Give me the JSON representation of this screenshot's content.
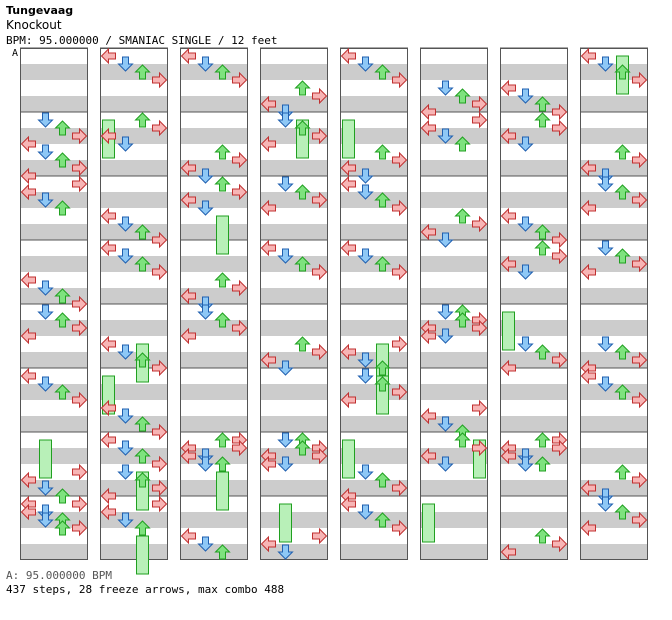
{
  "header": {
    "artist": "Tungevaag",
    "title": "Knockout",
    "info": "BPM: 95.000000 / SMANIAC SINGLE / 12 feet",
    "bpm_marker": "A"
  },
  "footer": {
    "bpm_text": "A: 95.000000 BPM",
    "stats": "437 steps, 28 freeze arrows, max combo 488"
  },
  "colors": {
    "stripe": "#cccccc",
    "left_note": "#f7b5b5",
    "down_note": "#8ec8f6",
    "up_note": "#7ee27e",
    "right_note": "#f7b5b5",
    "mine_note": "#e8a8f0",
    "freeze_fill": "#b8f0b8"
  },
  "chart": {
    "columns": 8,
    "measures_per_column": 8,
    "lanes": [
      "left",
      "down",
      "up",
      "right"
    ],
    "notes": [
      [
        [
          1,
          0,
          "down"
        ],
        [
          1,
          1,
          "left"
        ],
        [
          2,
          0,
          "down"
        ],
        [
          3,
          2,
          "up"
        ],
        [
          3,
          1,
          "left"
        ],
        [
          5,
          0,
          "right"
        ],
        [
          6,
          2,
          "up"
        ],
        [
          6,
          1,
          "left"
        ],
        [
          7,
          0,
          "right"
        ]
      ],
      [
        [
          0,
          0,
          "left"
        ],
        [
          1,
          0,
          "down"
        ],
        [
          2,
          1,
          "up"
        ],
        [
          3,
          0,
          "down"
        ],
        [
          4,
          1,
          "left"
        ],
        [
          5,
          1,
          "right"
        ],
        [
          5,
          2,
          "up"
        ],
        [
          6,
          1,
          "up"
        ],
        [
          7,
          0,
          "right"
        ]
      ],
      [
        [
          0,
          0,
          "left"
        ],
        [
          1,
          1,
          "down"
        ],
        [
          2,
          0,
          "left"
        ],
        [
          3,
          1,
          "right"
        ],
        [
          4,
          0,
          "down"
        ],
        [
          5,
          2,
          "up"
        ],
        [
          6,
          0,
          "left"
        ],
        [
          7,
          1,
          "down"
        ]
      ],
      [
        [
          0,
          1,
          "up"
        ],
        [
          1,
          0,
          "left"
        ],
        [
          2,
          0,
          "right"
        ],
        [
          3,
          0,
          "down"
        ],
        [
          4,
          1,
          "up"
        ],
        [
          5,
          2,
          "down"
        ],
        [
          6,
          0,
          "right"
        ],
        [
          7,
          1,
          "left"
        ]
      ],
      [
        [
          0,
          0,
          "left"
        ],
        [
          1,
          1,
          "down"
        ],
        [
          2,
          0,
          "up"
        ],
        [
          3,
          0,
          "down"
        ],
        [
          4,
          1,
          "right"
        ],
        [
          5,
          0,
          "left"
        ],
        [
          6,
          1,
          "right"
        ],
        [
          7,
          0,
          "down"
        ]
      ],
      [
        [
          0,
          1,
          "down"
        ],
        [
          1,
          0,
          "up"
        ],
        [
          2,
          1,
          "left"
        ],
        [
          3,
          2,
          "right"
        ],
        [
          4,
          0,
          "down"
        ],
        [
          5,
          1,
          "up"
        ],
        [
          6,
          0,
          "left"
        ],
        [
          7,
          2,
          "right"
        ]
      ],
      [
        [
          0,
          1,
          "left"
        ],
        [
          1,
          0,
          "down"
        ],
        [
          2,
          1,
          "up"
        ],
        [
          3,
          0,
          "right"
        ],
        [
          4,
          1,
          "down"
        ],
        [
          5,
          2,
          "up"
        ],
        [
          6,
          0,
          "left"
        ],
        [
          7,
          1,
          "right"
        ]
      ],
      [
        [
          0,
          0,
          "left"
        ],
        [
          1,
          1,
          "down"
        ],
        [
          2,
          0,
          "right"
        ],
        [
          3,
          0,
          "up"
        ],
        [
          4,
          1,
          "down"
        ],
        [
          5,
          0,
          "right"
        ],
        [
          6,
          1,
          "left"
        ],
        [
          7,
          0,
          "up"
        ]
      ]
    ],
    "freezes": [
      [
        0,
        6,
        0,
        "down"
      ],
      [
        1,
        1,
        0,
        "left"
      ],
      [
        1,
        4,
        1,
        "up"
      ],
      [
        1,
        5,
        0,
        "left"
      ],
      [
        1,
        6,
        1,
        "up"
      ],
      [
        1,
        7,
        1,
        "up"
      ],
      [
        2,
        2,
        1,
        "up"
      ],
      [
        2,
        6,
        1,
        "up"
      ],
      [
        3,
        1,
        0,
        "up"
      ],
      [
        3,
        7,
        0,
        "down"
      ],
      [
        4,
        1,
        0,
        "left"
      ],
      [
        4,
        4,
        1,
        "up"
      ],
      [
        4,
        5,
        0,
        "up"
      ],
      [
        4,
        6,
        0,
        "left"
      ],
      [
        5,
        6,
        0,
        "right"
      ],
      [
        5,
        7,
        0,
        "left"
      ],
      [
        6,
        4,
        0,
        "left"
      ],
      [
        7,
        0,
        0,
        "up"
      ]
    ]
  }
}
